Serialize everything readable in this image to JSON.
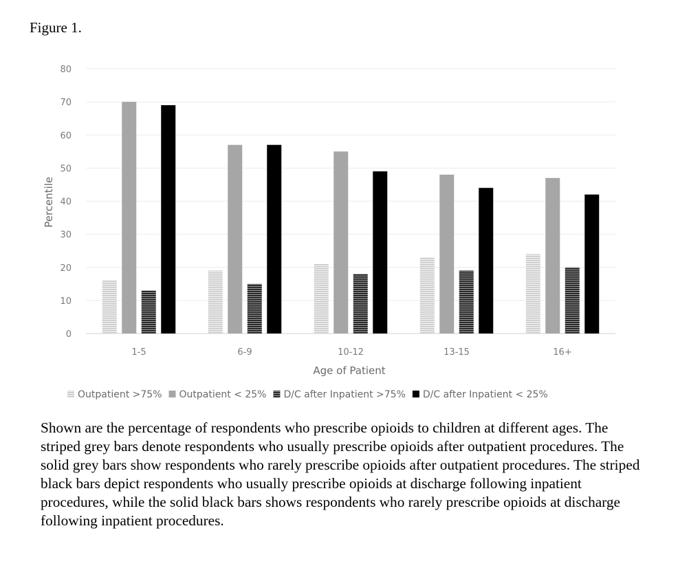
{
  "figure_label": "Figure 1.",
  "caption": "Shown are the percentage of respondents who prescribe opioids to children at different ages. The striped grey bars denote respondents who usually prescribe opioids after outpatient procedures. The solid grey bars show respondents who rarely prescribe opioids after outpatient procedures. The striped black bars depict respondents who usually prescribe opioids at discharge following inpatient procedures, while the solid black bars shows respondents who rarely prescribe opioids at discharge following inpatient procedures.",
  "chart_data": {
    "type": "bar",
    "title": "",
    "xlabel": "Age of Patient",
    "ylabel": "Percentile",
    "ylim": [
      0,
      80
    ],
    "yticks": [
      0,
      10,
      20,
      30,
      40,
      50,
      60,
      70,
      80
    ],
    "grid": true,
    "legend_position": "bottom",
    "categories": [
      "1-5",
      "6-9",
      "10-12",
      "13-15",
      "16+"
    ],
    "series": [
      {
        "name": "Outpatient >75%",
        "values": [
          16,
          19,
          21,
          23,
          24
        ],
        "color": "#d9d9d9",
        "pattern": "striped"
      },
      {
        "name": "Outpatient < 25%",
        "values": [
          70,
          57,
          55,
          48,
          47
        ],
        "color": "#a6a6a6",
        "pattern": "solid"
      },
      {
        "name": "D/C after Inpatient >75%",
        "values": [
          13,
          15,
          18,
          19,
          20
        ],
        "color": "#3a3a3a",
        "pattern": "striped"
      },
      {
        "name": "D/C after Inpatient < 25%",
        "values": [
          69,
          57,
          49,
          44,
          42
        ],
        "color": "#000000",
        "pattern": "solid"
      }
    ]
  }
}
